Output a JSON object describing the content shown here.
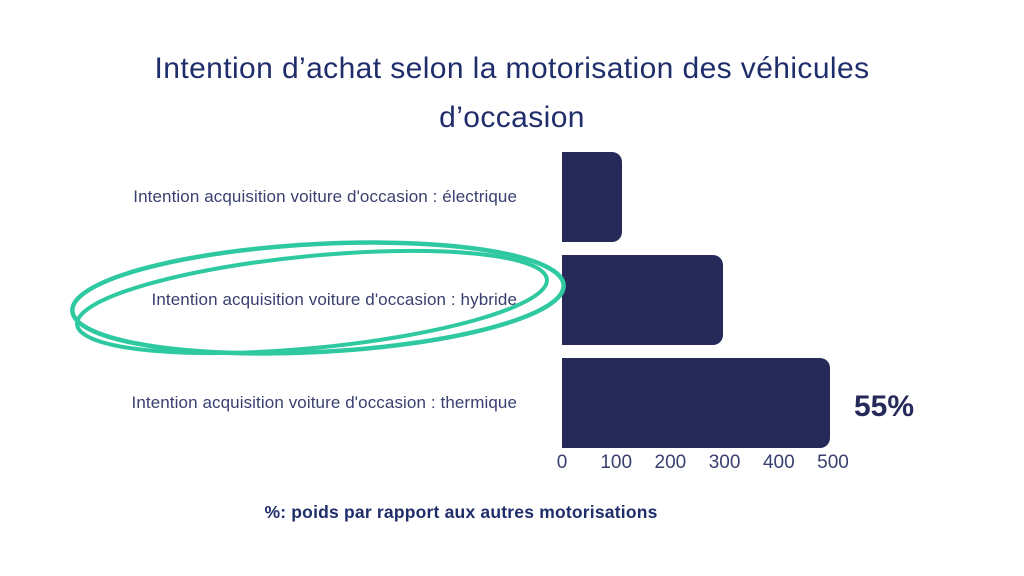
{
  "theme": {
    "bar_color": "#262a59",
    "title_color": "#1f2e6b",
    "label_color": "#39406f",
    "accent_green": "#2ec9a0",
    "background": "#ffffff"
  },
  "title": {
    "line1": "Intention d’achat selon la motorisation des véhicules",
    "line2": "d’occasion"
  },
  "chart_data": {
    "type": "bar",
    "orientation": "horizontal",
    "categories": [
      "Intention acquisition voiture d'occasion : électrique",
      "Intention acquisition voiture d'occasion : hybride",
      "Intention acquisition voiture d'occasion : thermique"
    ],
    "values": [
      110,
      297,
      495
    ],
    "xlim": [
      0,
      500
    ],
    "x_ticks": [
      "0",
      "100",
      "200",
      "300",
      "400",
      "500"
    ],
    "grid": "off",
    "legend": "none",
    "annotation": {
      "text": "55%",
      "attached_to": "Intention acquisition voiture d'occasion : thermique"
    },
    "highlight": {
      "type": "hand-drawn-ellipse",
      "color": "#2ec9a0",
      "around_category": "Intention acquisition voiture d'occasion : hybride"
    }
  },
  "footnote": "%: poids par rapport aux autres motorisations"
}
